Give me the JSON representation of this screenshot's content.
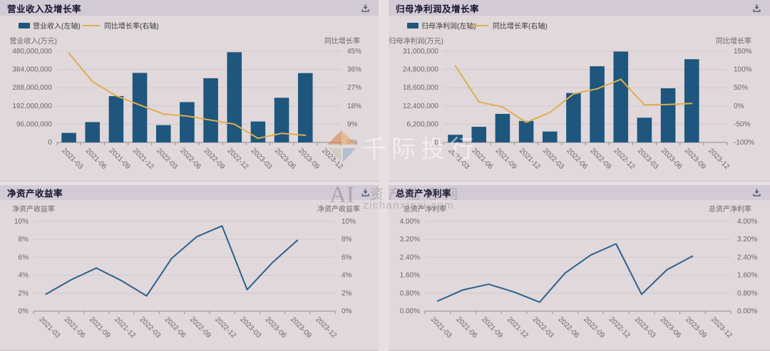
{
  "colors": {
    "bar": "#1e567d",
    "growth_line": "#dfae4f",
    "ratio_line": "#2c618e",
    "header_bg": "#d2cad4",
    "panel_bg": "#e0d8da",
    "grid_line": "#cfc7ca",
    "axis_text": "#6b6767",
    "title_text": "#14142b",
    "icon": "#3d4e6d"
  },
  "watermark": {
    "brand": "千际投行",
    "ai": "AI",
    "site_name": "资产信息网",
    "site_url": "zichanxinxi.com"
  },
  "chart_data": [
    {
      "type": "bar",
      "title": "营业收入及增长率",
      "legend": [
        "营业收入(左轴)",
        "同比增长率(右轴)"
      ],
      "left_axis": {
        "name": "营业收入(万元)",
        "min": 0,
        "max": 480000000,
        "tick_labels": [
          "0",
          "96,000,000",
          "192,000,000",
          "288,000,000",
          "384,000,000",
          "480,000,000"
        ]
      },
      "right_axis": {
        "name": "同比增长率",
        "min": 0,
        "max": 45,
        "tick_labels": [
          "0%",
          "9%",
          "18%",
          "27%",
          "36%",
          "45%"
        ]
      },
      "categories": [
        "2021-03",
        "2021-06",
        "2021-09",
        "2021-12",
        "2022-03",
        "2022-06",
        "2022-09",
        "2022-12",
        "2023-03",
        "2023-06",
        "2023-09",
        "2023-12"
      ],
      "series": [
        {
          "name": "营业收入(左轴)",
          "type": "bar",
          "axis": "left",
          "color": "#1e567d",
          "values": [
            50000000,
            107000000,
            244000000,
            366000000,
            91000000,
            212000000,
            338000000,
            475000000,
            110000000,
            235000000,
            365000000,
            null
          ]
        },
        {
          "name": "同比增长率(右轴)",
          "type": "line",
          "axis": "right",
          "color": "#dfae4f",
          "values": [
            44,
            30,
            23,
            18.5,
            14,
            13,
            11,
            9,
            2,
            4.5,
            3.5,
            null
          ]
        }
      ]
    },
    {
      "type": "bar",
      "title": "归母净利润及增长率",
      "legend": [
        "归母净利润(左轴)",
        "同比增长率(右轴)"
      ],
      "left_axis": {
        "name": "归母净利润(万元)",
        "min": 0,
        "max": 31000000,
        "tick_labels": [
          "0",
          "6,200,000",
          "12,400,000",
          "18,600,000",
          "24,800,000",
          "31,000,000"
        ]
      },
      "right_axis": {
        "name": "同比增长率",
        "min": -100,
        "max": 150,
        "tick_labels": [
          "-100%",
          "-50%",
          "0%",
          "50%",
          "100%",
          "150%"
        ]
      },
      "categories": [
        "2021-03",
        "2021-06",
        "2021-09",
        "2021-12",
        "2022-03",
        "2022-06",
        "2022-09",
        "2022-12",
        "2023-03",
        "2023-06",
        "2023-09",
        "2023-12"
      ],
      "series": [
        {
          "name": "归母净利润(左轴)",
          "type": "bar",
          "axis": "left",
          "color": "#1e567d",
          "values": [
            2600000,
            5300000,
            9700000,
            7300000,
            3700000,
            16800000,
            25900000,
            30900000,
            8400000,
            18400000,
            28300000,
            null
          ]
        },
        {
          "name": "同比增长率(右轴)",
          "type": "line",
          "axis": "right",
          "color": "#dfae4f",
          "values": [
            110,
            11,
            -3,
            -45,
            -18,
            33,
            47,
            73,
            3,
            4,
            7,
            null
          ]
        }
      ]
    },
    {
      "type": "line",
      "title": "净资产收益率",
      "legend": null,
      "left_axis": {
        "name": "净资产收益率",
        "min": 0,
        "max": 10,
        "tick_labels": [
          "0%",
          "2%",
          "4%",
          "6%",
          "8%",
          "10%"
        ]
      },
      "right_axis": {
        "name": "净资产收益率",
        "min": 0,
        "max": 10,
        "tick_labels": [
          "0%",
          "2%",
          "4%",
          "6%",
          "8%",
          "10%"
        ]
      },
      "categories": [
        "2021-03",
        "2021-06",
        "2021-09",
        "2021-12",
        "2022-03",
        "2022-06",
        "2022-09",
        "2022-12",
        "2023-03",
        "2023-06",
        "2023-09",
        "2023-12"
      ],
      "series": [
        {
          "name": "净资产收益率",
          "type": "line",
          "axis": "left",
          "color": "#2c618e",
          "values": [
            1.9,
            3.5,
            4.8,
            3.4,
            1.7,
            5.9,
            8.3,
            9.5,
            2.4,
            5.4,
            7.9,
            null
          ]
        }
      ]
    },
    {
      "type": "line",
      "title": "总资产净利率",
      "legend": null,
      "left_axis": {
        "name": "总资产净利率",
        "min": 0,
        "max": 4,
        "tick_labels": [
          "0.00%",
          "0.80%",
          "1.60%",
          "2.40%",
          "3.20%",
          "4.00%"
        ]
      },
      "right_axis": {
        "name": "总资产净利率",
        "min": 0,
        "max": 4,
        "tick_labels": [
          "0.00%",
          "0.80%",
          "1.60%",
          "2.40%",
          "3.20%",
          "4.00%"
        ]
      },
      "categories": [
        "2021-03",
        "2021-06",
        "2021-09",
        "2021-12",
        "2022-03",
        "2022-06",
        "2022-09",
        "2022-12",
        "2023-03",
        "2023-06",
        "2023-09",
        "2023-12"
      ],
      "series": [
        {
          "name": "总资产净利率",
          "type": "line",
          "axis": "left",
          "color": "#2c618e",
          "values": [
            0.45,
            0.95,
            1.2,
            0.85,
            0.4,
            1.7,
            2.5,
            3.0,
            0.75,
            1.85,
            2.45,
            null
          ]
        }
      ]
    }
  ]
}
